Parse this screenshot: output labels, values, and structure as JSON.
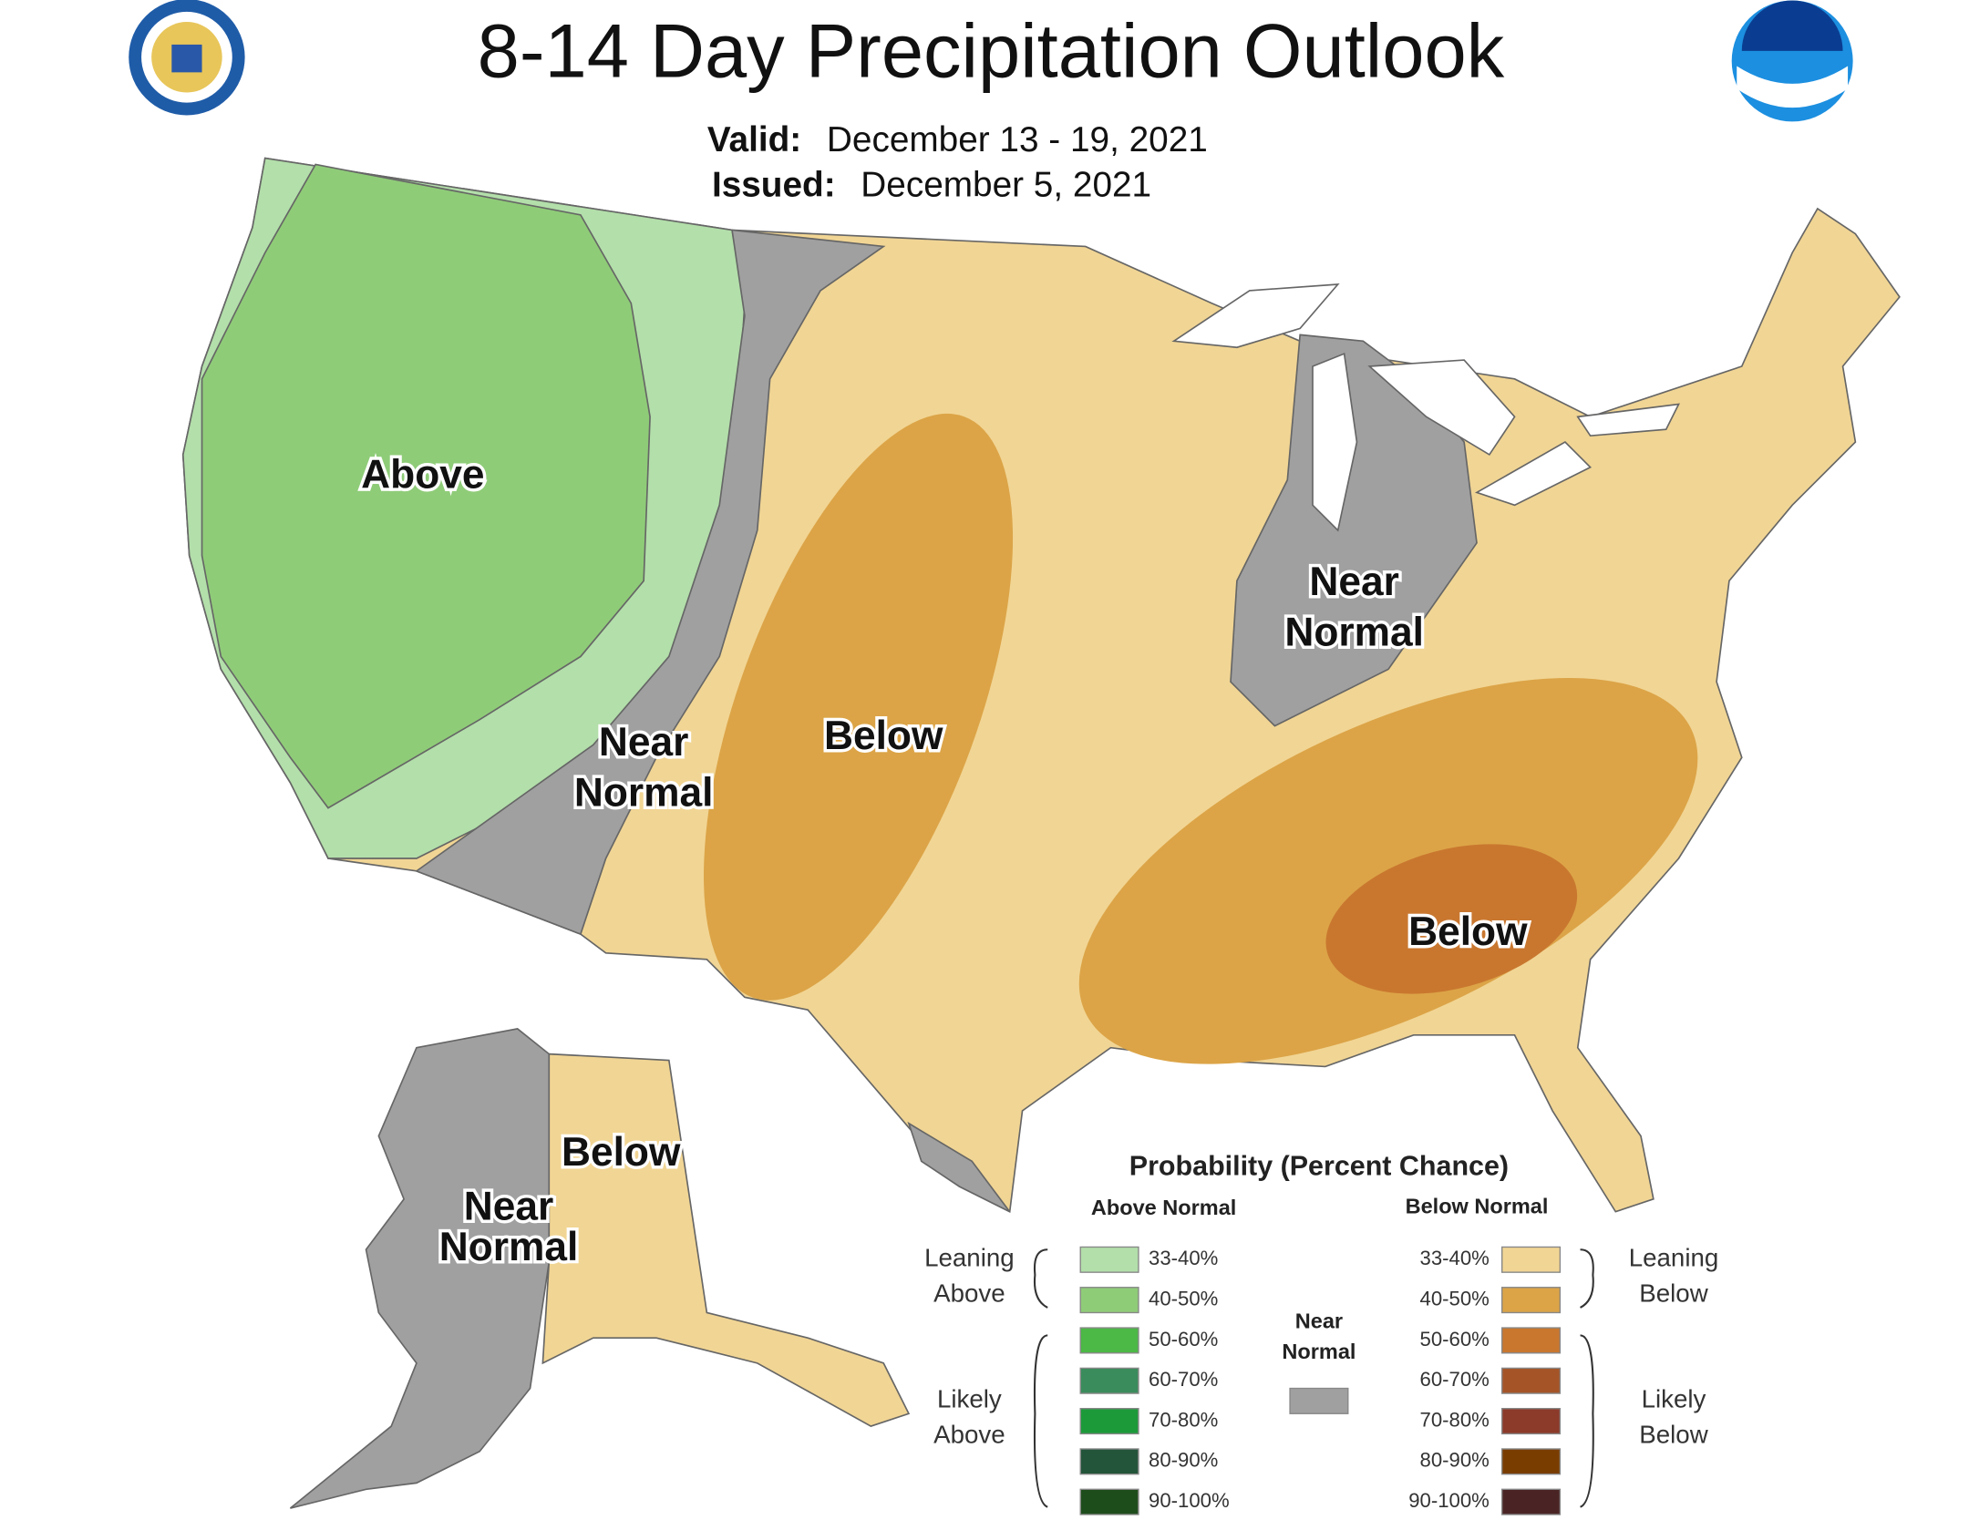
{
  "header": {
    "title": "8-14 Day Precipitation Outlook",
    "valid_label": "Valid:",
    "valid": "December 13 - 19, 2021",
    "issued_label": "Issued:",
    "issued": "December 5, 2021"
  },
  "regions": [
    {
      "lines": [
        "Above"
      ]
    },
    {
      "lines": [
        "Near",
        "Normal"
      ]
    },
    {
      "lines": [
        "Below"
      ]
    },
    {
      "lines": [
        "Near",
        "Normal"
      ]
    },
    {
      "lines": [
        "Below"
      ]
    },
    {
      "lines": [
        "Below"
      ]
    },
    {
      "lines": [
        "Near",
        "Normal"
      ]
    }
  ],
  "legend": {
    "title": "Probability (Percent Chance)",
    "above_heading": "Above Normal",
    "below_heading": "Below Normal",
    "above_items": [
      {
        "label": "33-40%",
        "color": "#b3dfaa"
      },
      {
        "label": "40-50%",
        "color": "#8fcc78"
      },
      {
        "label": "50-60%",
        "color": "#4cb846"
      },
      {
        "label": "60-70%",
        "color": "#3a8c5c"
      },
      {
        "label": "70-80%",
        "color": "#1c9a3a"
      },
      {
        "label": "80-90%",
        "color": "#23553a"
      },
      {
        "label": "90-100%",
        "color": "#1e4d1c"
      }
    ],
    "below_items": [
      {
        "label": "33-40%",
        "color": "#f1d594"
      },
      {
        "label": "40-50%",
        "color": "#dca447"
      },
      {
        "label": "50-60%",
        "color": "#c9772f"
      },
      {
        "label": "60-70%",
        "color": "#a55428"
      },
      {
        "label": "70-80%",
        "color": "#8c3a2a"
      },
      {
        "label": "80-90%",
        "color": "#7a3d00"
      },
      {
        "label": "90-100%",
        "color": "#4a2424"
      }
    ],
    "near_normal": {
      "lines": [
        "Near",
        "Normal"
      ],
      "color": "#a0a0a0"
    },
    "leaning_above": [
      "Leaning",
      "Above"
    ],
    "likely_above": [
      "Likely",
      "Above"
    ],
    "leaning_below": [
      "Leaning",
      "Below"
    ],
    "likely_below": [
      "Likely",
      "Below"
    ]
  }
}
